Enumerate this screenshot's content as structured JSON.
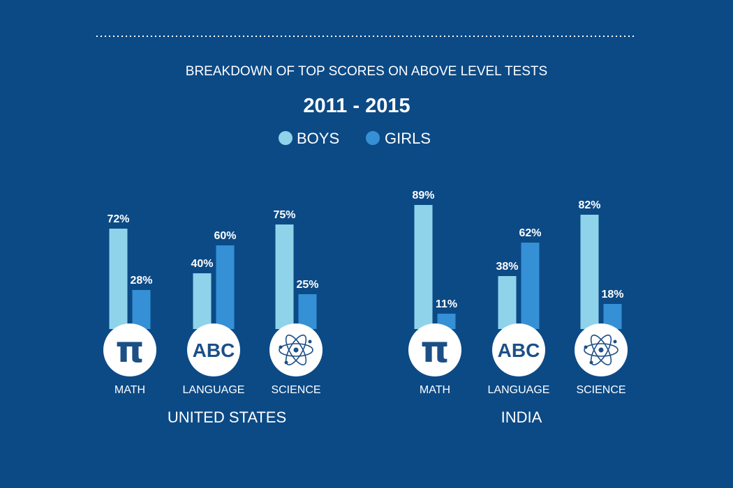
{
  "chart_data": {
    "type": "bar",
    "title": "BREAKDOWN OF TOP SCORES ON ABOVE LEVEL TESTS",
    "subtitle": "2011 - 2015",
    "ylim": [
      0,
      100
    ],
    "grid": false,
    "legend_position": "top-center",
    "colors": {
      "background": "#0c4a86",
      "boys": "#8fd3ea",
      "girls": "#3590d6",
      "icon": "#1c4f86"
    },
    "series": [
      {
        "name": "BOYS",
        "color": "#8fd3ea"
      },
      {
        "name": "GIRLS",
        "color": "#3590d6"
      }
    ],
    "groups": [
      {
        "name": "UNITED STATES",
        "categories": [
          {
            "label": "MATH",
            "icon": "pi-icon",
            "boys": 72,
            "girls": 28,
            "boys_label": "72%",
            "girls_label": "28%"
          },
          {
            "label": "LANGUAGE",
            "icon": "abc-icon",
            "boys": 40,
            "girls": 60,
            "boys_label": "40%",
            "girls_label": "60%"
          },
          {
            "label": "SCIENCE",
            "icon": "atom-icon",
            "boys": 75,
            "girls": 25,
            "boys_label": "75%",
            "girls_label": "25%"
          }
        ]
      },
      {
        "name": "INDIA",
        "categories": [
          {
            "label": "MATH",
            "icon": "pi-icon",
            "boys": 89,
            "girls": 11,
            "boys_label": "89%",
            "girls_label": "11%"
          },
          {
            "label": "LANGUAGE",
            "icon": "abc-icon",
            "boys": 38,
            "girls": 62,
            "boys_label": "38%",
            "girls_label": "62%"
          },
          {
            "label": "SCIENCE",
            "icon": "atom-icon",
            "boys": 82,
            "girls": 18,
            "boys_label": "82%",
            "girls_label": "18%"
          }
        ]
      }
    ],
    "icon_text": {
      "pi": "π",
      "abc": "ABC"
    }
  }
}
